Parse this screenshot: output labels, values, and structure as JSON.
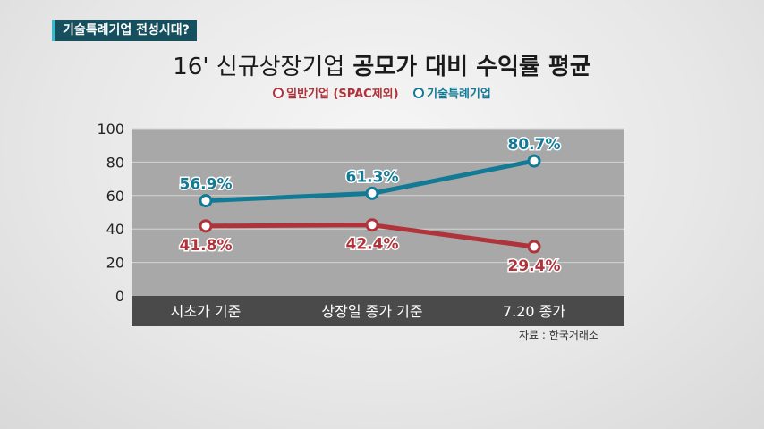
{
  "header": {
    "tag": "기술특례기업 전성시대?",
    "title_lead": "16' 신규상장기업",
    "title_main": "공모가 대비 수익률 평균"
  },
  "source": "자료 : 한국거래소",
  "colors": {
    "general": "#b0323b",
    "tech": "#137a95",
    "plot_bg": "#a8a8a8",
    "category_bar": "#4a4a4a"
  },
  "chart_data": {
    "type": "line",
    "title": "16' 신규상장기업 공모가 대비 수익률 평균",
    "categories": [
      "시초가 기준",
      "상장일 종가 기준",
      "7.20 종가"
    ],
    "ylim": [
      0,
      100
    ],
    "yticks": [
      0,
      20,
      40,
      60,
      80,
      100
    ],
    "grid": true,
    "legend_position": "top-center",
    "series": [
      {
        "name": "일반기업 (SPAC제외)",
        "values": [
          41.8,
          42.4,
          29.4
        ],
        "labels": [
          "41.8%",
          "42.4%",
          "29.4%"
        ],
        "color": "#b0323b",
        "label_position": "below"
      },
      {
        "name": "기술특례기업",
        "values": [
          56.9,
          61.3,
          80.7
        ],
        "labels": [
          "56.9%",
          "61.3%",
          "80.7%"
        ],
        "color": "#137a95",
        "label_position": "above"
      }
    ]
  }
}
